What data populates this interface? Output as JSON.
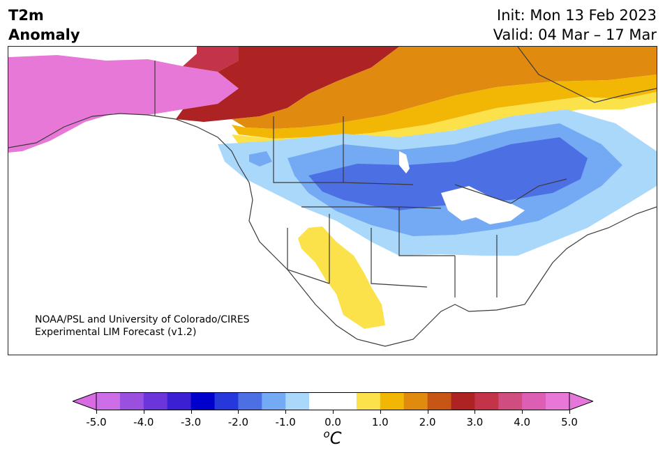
{
  "title": {
    "line1": "T2m",
    "line2": "Anomaly"
  },
  "info": {
    "init": "Init: Mon 13 Feb 2023",
    "valid": "Valid: 04 Mar – 17 Mar"
  },
  "credit": {
    "line1": "NOAA/PSL and University of Colorado/CIRES",
    "line2": "Experimental LIM Forecast (v1.2)"
  },
  "colorbar": {
    "tick_labels": [
      "-5.0",
      "-4.0",
      "-3.0",
      "-2.0",
      "-1.0",
      "0.0",
      "1.0",
      "2.0",
      "3.0",
      "4.0",
      "5.0"
    ],
    "tick_values": [
      -5,
      -4,
      -3,
      -2,
      -1,
      0,
      1,
      2,
      3,
      4,
      5
    ],
    "unit_base": "C",
    "unit_prefix": "o",
    "min_value": -5.0,
    "max_value": 5.0,
    "step": 0.5,
    "colors": [
      "#cd6ee8",
      "#9b4fdf",
      "#6b35dc",
      "#3a1fd4",
      "#0000cc",
      "#2638dc",
      "#4d6fe4",
      "#74aaf3",
      "#aad8fa",
      "#ffffff",
      "#ffffff",
      "#fbe24a",
      "#f2b705",
      "#e08a10",
      "#c75515",
      "#ad2323",
      "#c43448",
      "#d04d80",
      "#dc5fb4",
      "#e878d8"
    ],
    "extend_low_color": "#d86be2",
    "extend_high_color": "#e576da"
  },
  "map": {
    "region": "North America",
    "anomaly_areas": [
      {
        "region": "Alaska",
        "anomaly_c": 5.0,
        "color": "#e878d8"
      },
      {
        "region": "Yukon / Northwest Territories",
        "anomaly_c": 3.5,
        "color": "#ad2323"
      },
      {
        "region": "Nunavut / Canadian Arctic",
        "anomaly_c": 1.5,
        "color": "#f2b705"
      },
      {
        "region": "Northern Plains / Manitoba",
        "anomaly_c": -2.0,
        "color": "#4d6fe4"
      },
      {
        "region": "Quebec",
        "anomaly_c": -2.0,
        "color": "#4d6fe4"
      },
      {
        "region": "Pacific Northwest / British Columbia",
        "anomaly_c": -0.75,
        "color": "#aad8fa"
      },
      {
        "region": "Great Lakes / Northeast US",
        "anomaly_c": -1.0,
        "color": "#74aaf3"
      },
      {
        "region": "Arizona / New Mexico / Northern Mexico",
        "anomaly_c": 0.75,
        "color": "#fbe24a"
      },
      {
        "region": "Southeast US",
        "anomaly_c": 0.0,
        "color": "#ffffff"
      }
    ],
    "land_color": "#ffffff",
    "border_color": "#3a3a3a"
  }
}
